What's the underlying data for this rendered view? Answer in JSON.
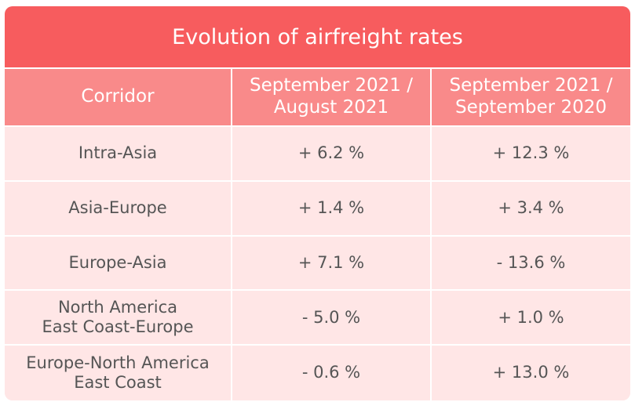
{
  "table": {
    "title": "Evolution of airfreight rates",
    "headers": [
      "Corridor",
      "September 2021 /\nAugust 2021",
      "September 2021 /\nSeptember 2020"
    ],
    "rows": [
      {
        "corridor": "Intra-Asia",
        "mom": "+ 6.2 %",
        "yoy": "+ 12.3 %"
      },
      {
        "corridor": "Asia-Europe",
        "mom": "+ 1.4 %",
        "yoy": "+ 3.4 %"
      },
      {
        "corridor": "Europe-Asia",
        "mom": "+ 7.1 %",
        "yoy": "- 13.6 %"
      },
      {
        "corridor": "North America\nEast Coast-Europe",
        "mom": "- 5.0 %",
        "yoy": "+ 1.0 %"
      },
      {
        "corridor": "Europe-North America\nEast Coast",
        "mom": "- 0.6 %",
        "yoy": "+ 13.0 %"
      }
    ]
  },
  "colors": {
    "title_bg": "#f75c5e",
    "header_bg": "#f98a8a",
    "row_bg": "#ffe6e6",
    "row_text": "#555555"
  }
}
